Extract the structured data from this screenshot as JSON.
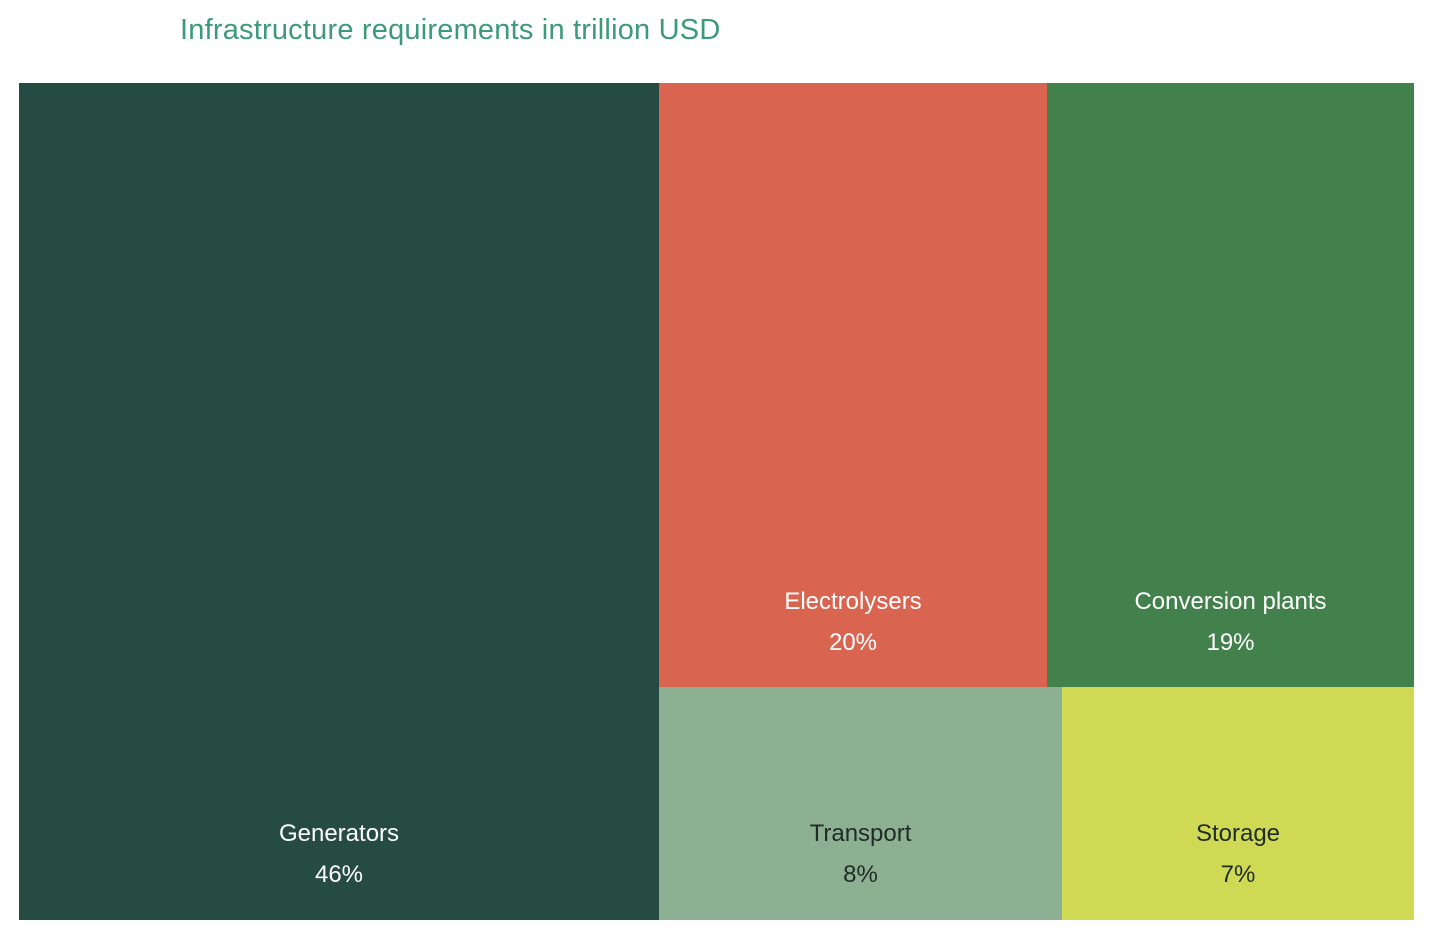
{
  "chart_data": {
    "type": "treemap",
    "title": "Infrastructure requirements in trillion USD",
    "unit": "%",
    "items": [
      {
        "name": "Generators",
        "value": 46,
        "label": "46%",
        "color": "#264b42",
        "text_color": "#ffffff"
      },
      {
        "name": "Electrolysers",
        "value": 20,
        "label": "20%",
        "color": "#d96550",
        "text_color": "#ffffff"
      },
      {
        "name": "Conversion plants",
        "value": 19,
        "label": "19%",
        "color": "#42804c",
        "text_color": "#ffffff"
      },
      {
        "name": "Transport",
        "value": 8,
        "label": "8%",
        "color": "#8eb092",
        "text_color": "#1e2b26"
      },
      {
        "name": "Storage",
        "value": 7,
        "label": "7%",
        "color": "#d0d953",
        "text_color": "#1e2b26"
      }
    ]
  },
  "colors": {
    "title": "#3d9a78",
    "background": "#ffffff"
  }
}
